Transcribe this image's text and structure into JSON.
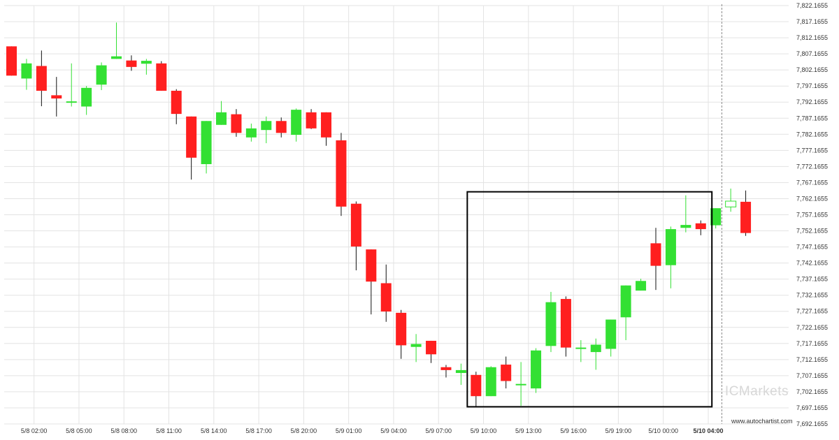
{
  "chart_data": {
    "type": "candlestick",
    "y_ticks": [
      "7,822.1655",
      "7,817.1655",
      "7,812.1655",
      "7,807.1655",
      "7,802.1655",
      "7,797.1655",
      "7,792.1655",
      "7,787.1655",
      "7,782.1655",
      "7,777.1655",
      "7,772.1655",
      "7,767.1655",
      "7,762.1655",
      "7,757.1655",
      "7,752.1655",
      "7,747.1655",
      "7,742.1655",
      "7,737.1655",
      "7,732.1655",
      "7,727.1655",
      "7,722.1655",
      "7,717.1655",
      "7,712.1655",
      "7,707.1655",
      "7,702.1655",
      "7,697.1655",
      "7,692.1655"
    ],
    "ylim": [
      7692.1655,
      7822.1655
    ],
    "x_ticks": [
      {
        "label": "5/8 02:00",
        "index": 1.5
      },
      {
        "label": "5/8 05:00",
        "index": 4.5
      },
      {
        "label": "5/8 08:00",
        "index": 7.5
      },
      {
        "label": "5/8 11:00",
        "index": 10.5
      },
      {
        "label": "5/8 14:00",
        "index": 13.5
      },
      {
        "label": "5/8 17:00",
        "index": 16.5
      },
      {
        "label": "5/8 20:00",
        "index": 19.5
      },
      {
        "label": "5/9 01:00",
        "index": 22.5
      },
      {
        "label": "5/9 04:00",
        "index": 25.5
      },
      {
        "label": "5/9 07:00",
        "index": 28.5
      },
      {
        "label": "5/9 10:00",
        "index": 31.5
      },
      {
        "label": "5/9 13:00",
        "index": 34.5
      },
      {
        "label": "5/9 16:00",
        "index": 37.5
      },
      {
        "label": "5/9 19:00",
        "index": 40.5
      },
      {
        "label": "5/10 00:00",
        "index": 43.5
      },
      {
        "label": "5/10 04:00",
        "index": 46.5,
        "bold": true
      }
    ],
    "candles": [
      {
        "o": 7809.5,
        "h": 7809.5,
        "l": 7800.4,
        "c": 7800.4
      },
      {
        "o": 7799.5,
        "h": 7805.6,
        "l": 7796.0,
        "c": 7804.2
      },
      {
        "o": 7803.4,
        "h": 7808.2,
        "l": 7790.9,
        "c": 7795.7
      },
      {
        "o": 7794.3,
        "h": 7800.0,
        "l": 7787.7,
        "c": 7793.3
      },
      {
        "o": 7792.4,
        "h": 7804.2,
        "l": 7790.8,
        "c": 7792.4
      },
      {
        "o": 7790.8,
        "h": 7797.2,
        "l": 7788.2,
        "c": 7796.6
      },
      {
        "o": 7797.6,
        "h": 7804.5,
        "l": 7795.9,
        "c": 7803.6
      },
      {
        "o": 7805.6,
        "h": 7816.9,
        "l": 7805.6,
        "c": 7806.4
      },
      {
        "o": 7805.1,
        "h": 7806.7,
        "l": 7801.9,
        "c": 7803.1
      },
      {
        "o": 7804.1,
        "h": 7805.6,
        "l": 7800.7,
        "c": 7805.0
      },
      {
        "o": 7804.2,
        "h": 7804.9,
        "l": 7795.7,
        "c": 7795.7
      },
      {
        "o": 7795.7,
        "h": 7796.2,
        "l": 7785.3,
        "c": 7788.5
      },
      {
        "o": 7787.7,
        "h": 7787.7,
        "l": 7768.1,
        "c": 7774.9
      },
      {
        "o": 7772.9,
        "h": 7786.3,
        "l": 7770.0,
        "c": 7786.3
      },
      {
        "o": 7785.1,
        "h": 7792.5,
        "l": 7785.1,
        "c": 7789.0
      },
      {
        "o": 7788.4,
        "h": 7790.0,
        "l": 7781.4,
        "c": 7782.6
      },
      {
        "o": 7781.2,
        "h": 7785.5,
        "l": 7779.9,
        "c": 7784.0
      },
      {
        "o": 7783.5,
        "h": 7787.7,
        "l": 7779.4,
        "c": 7786.3
      },
      {
        "o": 7786.3,
        "h": 7787.4,
        "l": 7781.2,
        "c": 7782.6
      },
      {
        "o": 7782.0,
        "h": 7790.2,
        "l": 7779.9,
        "c": 7789.8
      },
      {
        "o": 7789.0,
        "h": 7790.0,
        "l": 7783.8,
        "c": 7784.0
      },
      {
        "o": 7789.0,
        "h": 7789.0,
        "l": 7778.6,
        "c": 7781.2
      },
      {
        "o": 7780.3,
        "h": 7782.6,
        "l": 7756.8,
        "c": 7759.7
      },
      {
        "o": 7760.6,
        "h": 7761.3,
        "l": 7739.9,
        "c": 7747.3
      },
      {
        "o": 7746.4,
        "h": 7746.4,
        "l": 7726.2,
        "c": 7736.4
      },
      {
        "o": 7735.9,
        "h": 7741.7,
        "l": 7723.9,
        "c": 7727.1
      },
      {
        "o": 7726.7,
        "h": 7727.6,
        "l": 7712.4,
        "c": 7716.6
      },
      {
        "o": 7716.1,
        "h": 7720.1,
        "l": 7711.4,
        "c": 7717.0
      },
      {
        "o": 7718.0,
        "h": 7718.0,
        "l": 7711.1,
        "c": 7713.8
      },
      {
        "o": 7709.8,
        "h": 7710.5,
        "l": 7706.6,
        "c": 7708.9
      },
      {
        "o": 7708.0,
        "h": 7710.9,
        "l": 7704.3,
        "c": 7708.9
      },
      {
        "o": 7707.4,
        "h": 7708.4,
        "l": 7697.5,
        "c": 7700.8
      },
      {
        "o": 7700.8,
        "h": 7710.1,
        "l": 7700.8,
        "c": 7709.8
      },
      {
        "o": 7710.6,
        "h": 7713.1,
        "l": 7703.2,
        "c": 7705.5
      },
      {
        "o": 7704.6,
        "h": 7711.4,
        "l": 7697.8,
        "c": 7704.6
      },
      {
        "o": 7703.2,
        "h": 7715.7,
        "l": 7701.8,
        "c": 7715.0
      },
      {
        "o": 7716.4,
        "h": 7733.2,
        "l": 7714.5,
        "c": 7730.0
      },
      {
        "o": 7731.0,
        "h": 7731.8,
        "l": 7713.1,
        "c": 7715.9
      },
      {
        "o": 7715.9,
        "h": 7718.2,
        "l": 7711.4,
        "c": 7715.9
      },
      {
        "o": 7714.5,
        "h": 7718.7,
        "l": 7709.0,
        "c": 7716.8
      },
      {
        "o": 7715.5,
        "h": 7724.6,
        "l": 7713.1,
        "c": 7724.6
      },
      {
        "o": 7725.3,
        "h": 7735.2,
        "l": 7718.2,
        "c": 7735.2
      },
      {
        "o": 7733.6,
        "h": 7737.3,
        "l": 7733.6,
        "c": 7736.6
      },
      {
        "o": 7748.3,
        "h": 7753.1,
        "l": 7733.8,
        "c": 7741.3
      },
      {
        "o": 7741.5,
        "h": 7753.5,
        "l": 7734.3,
        "c": 7752.7
      },
      {
        "o": 7753.1,
        "h": 7763.2,
        "l": 7751.7,
        "c": 7754.0
      },
      {
        "o": 7754.5,
        "h": 7755.4,
        "l": 7750.8,
        "c": 7752.7
      },
      {
        "o": 7753.9,
        "h": 7759.2,
        "l": 7752.9,
        "c": 7759.2
      },
      {
        "o": 7759.6,
        "h": 7765.3,
        "l": 7758.1,
        "c": 7761.4,
        "hollow": true
      },
      {
        "o": 7761.2,
        "h": 7764.7,
        "l": 7750.6,
        "c": 7751.5
      }
    ],
    "pattern_box": {
      "start_index": 31,
      "end_index": 47,
      "upper": 7764.3,
      "lower": 7697.5
    },
    "current_time_index": 47.5,
    "colors": {
      "up": "#33e033",
      "down": "#ff1f1f",
      "wick": "#111111",
      "box": "#000000",
      "grid": "#e3e3e3",
      "marker": "#8a8a8a"
    }
  },
  "watermark": {
    "text": "ICMarkets"
  },
  "credit": {
    "text": "www.autochartist.com"
  }
}
